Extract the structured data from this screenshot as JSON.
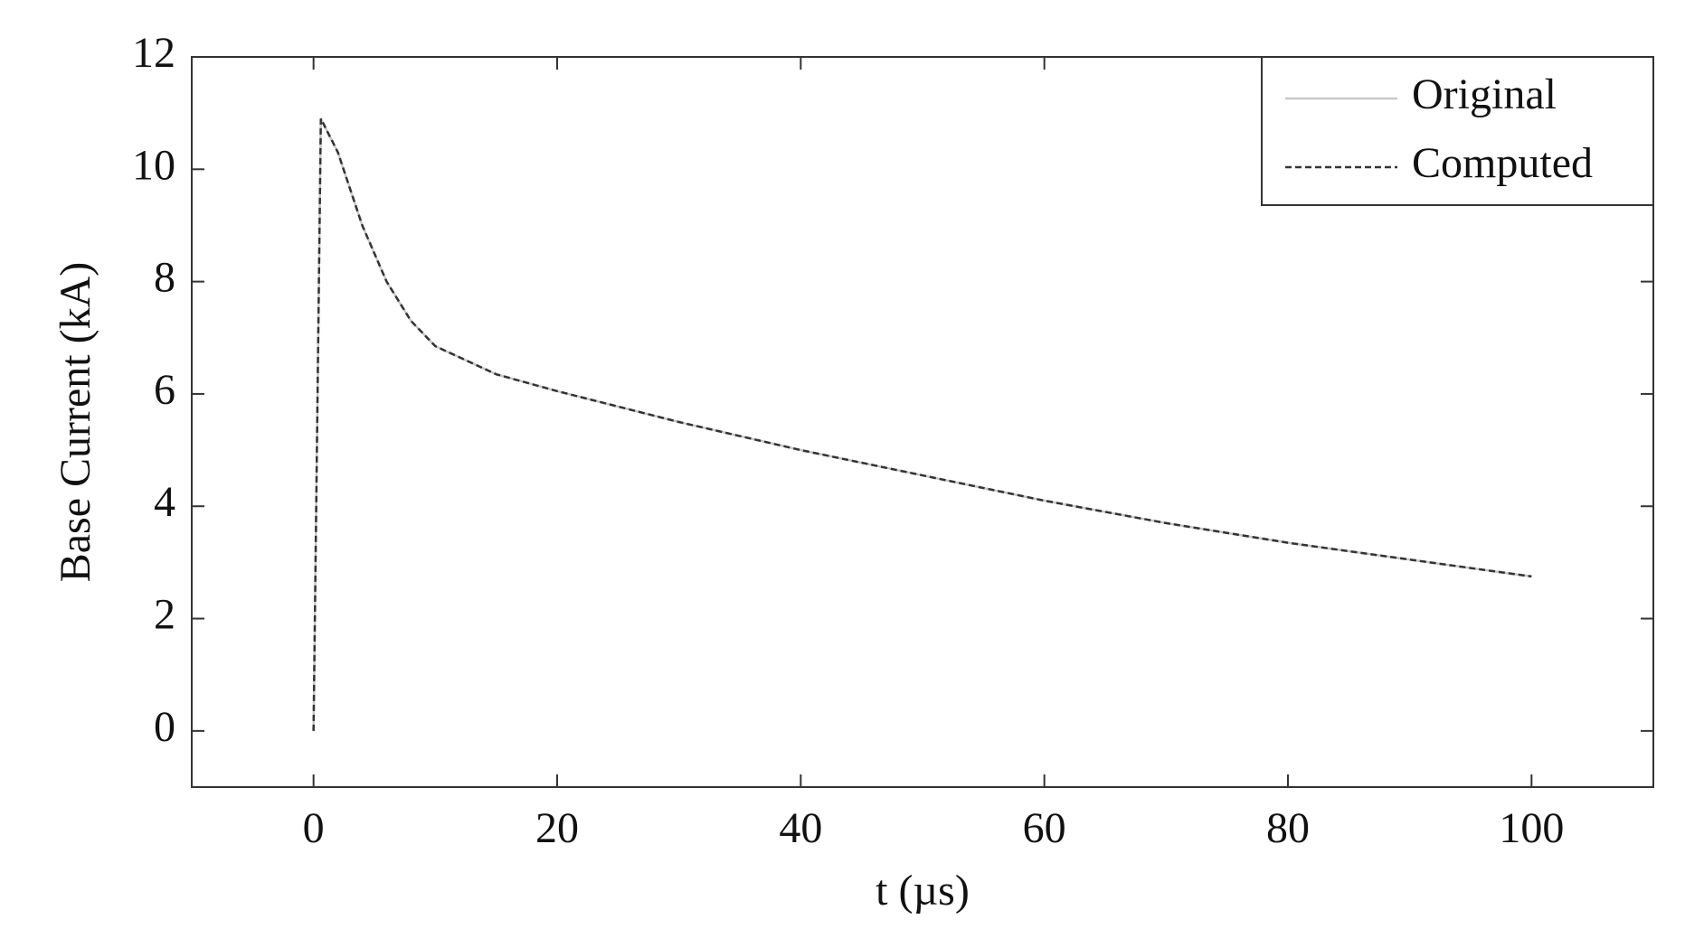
{
  "chart_data": {
    "type": "line",
    "x_label": "t (µs)",
    "y_label": "Base Current (kA)",
    "x": [
      0,
      0.6,
      2,
      4,
      6,
      8,
      10,
      15,
      20,
      30,
      40,
      50,
      60,
      70,
      80,
      90,
      100
    ],
    "series": [
      {
        "name": "Original",
        "color": "#c8c8c8",
        "dash": false,
        "values": [
          0,
          10.9,
          10.3,
          9.0,
          8.0,
          7.3,
          6.85,
          6.35,
          6.05,
          5.5,
          5.0,
          4.55,
          4.1,
          3.7,
          3.35,
          3.05,
          2.75
        ]
      },
      {
        "name": "Computed",
        "color": "#333333",
        "dash": true,
        "values": [
          0,
          10.9,
          10.3,
          9.0,
          8.0,
          7.3,
          6.85,
          6.35,
          6.05,
          5.5,
          5.0,
          4.55,
          4.1,
          3.7,
          3.35,
          3.05,
          2.75
        ]
      }
    ],
    "xlim": [
      -10,
      110
    ],
    "xticks": [
      0,
      20,
      40,
      60,
      80,
      100
    ],
    "ylim": [
      -1,
      12
    ],
    "yticks": [
      0,
      2,
      4,
      6,
      8,
      10,
      12
    ],
    "legend": "upper-right",
    "grid": false
  }
}
